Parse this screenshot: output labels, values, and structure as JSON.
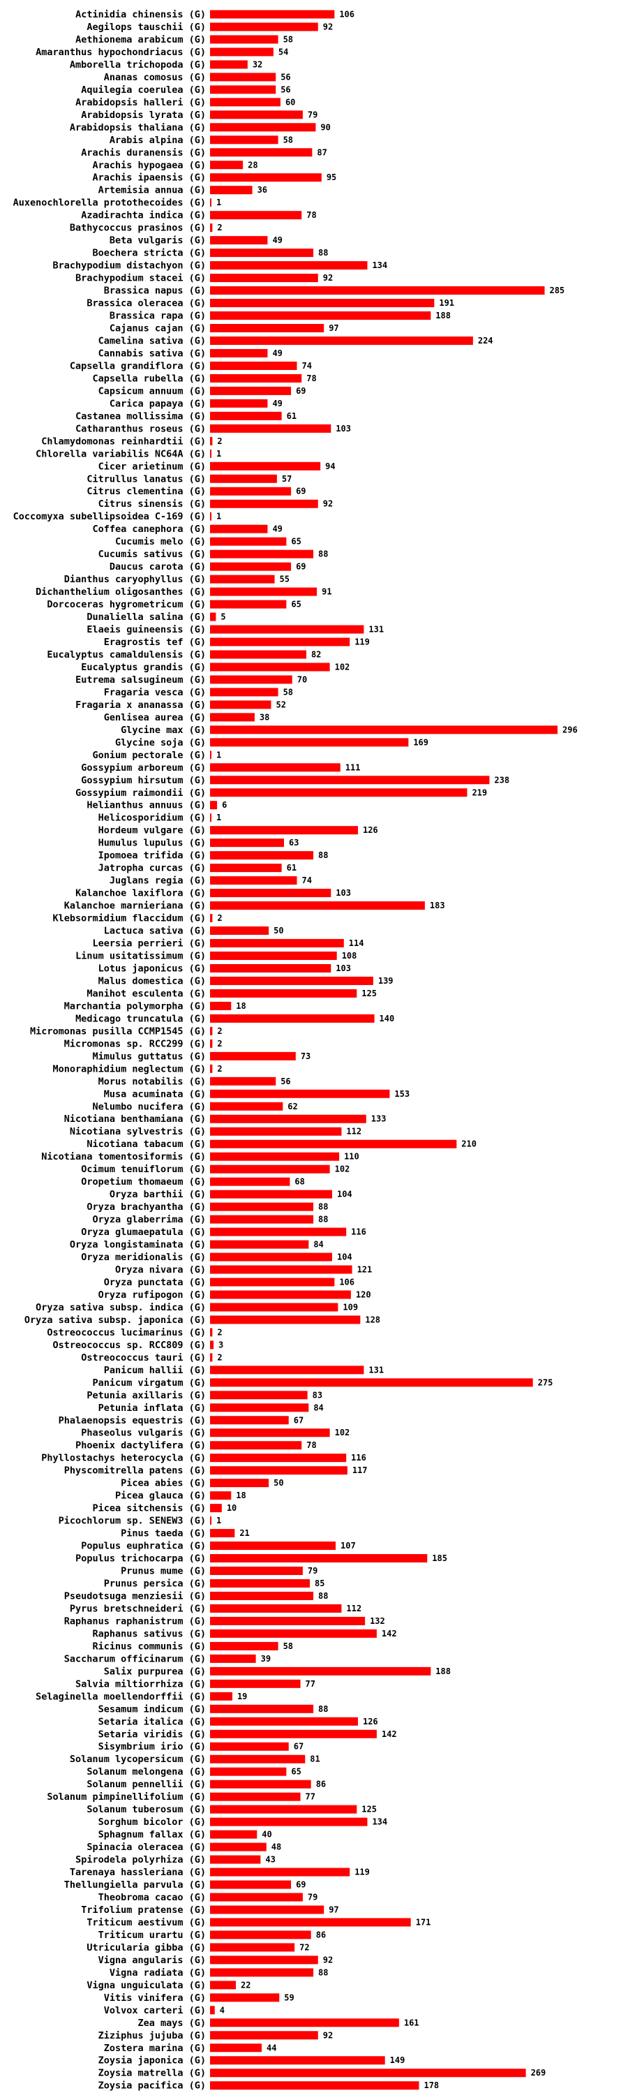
{
  "chart_data": {
    "type": "bar",
    "orientation": "horizontal",
    "title": "",
    "xlabel": "",
    "ylabel": "",
    "bar_color": "#ff0000",
    "xlim": [
      0,
      296
    ],
    "categories": [
      "Actinidia chinensis (G)",
      "Aegilops tauschii (G)",
      "Aethionema arabicum (G)",
      "Amaranthus hypochondriacus (G)",
      "Amborella trichopoda (G)",
      "Ananas comosus (G)",
      "Aquilegia coerulea (G)",
      "Arabidopsis halleri (G)",
      "Arabidopsis lyrata (G)",
      "Arabidopsis thaliana (G)",
      "Arabis alpina (G)",
      "Arachis duranensis (G)",
      "Arachis hypogaea (G)",
      "Arachis ipaensis (G)",
      "Artemisia annua (G)",
      "Auxenochlorella protothecoides (G)",
      "Azadirachta indica (G)",
      "Bathycoccus prasinos (G)",
      "Beta vulgaris (G)",
      "Boechera stricta (G)",
      "Brachypodium distachyon (G)",
      "Brachypodium stacei (G)",
      "Brassica napus (G)",
      "Brassica oleracea (G)",
      "Brassica rapa (G)",
      "Cajanus cajan (G)",
      "Camelina sativa (G)",
      "Cannabis sativa (G)",
      "Capsella grandiflora (G)",
      "Capsella rubella (G)",
      "Capsicum annuum (G)",
      "Carica papaya (G)",
      "Castanea mollissima (G)",
      "Catharanthus roseus (G)",
      "Chlamydomonas reinhardtii (G)",
      "Chlorella variabilis NC64A (G)",
      "Cicer arietinum (G)",
      "Citrullus lanatus (G)",
      "Citrus clementina (G)",
      "Citrus sinensis (G)",
      "Coccomyxa subellipsoidea C-169 (G)",
      "Coffea canephora (G)",
      "Cucumis melo (G)",
      "Cucumis sativus (G)",
      "Daucus carota (G)",
      "Dianthus caryophyllus (G)",
      "Dichanthelium oligosanthes (G)",
      "Dorcoceras hygrometricum (G)",
      "Dunaliella salina (G)",
      "Elaeis guineensis (G)",
      "Eragrostis tef (G)",
      "Eucalyptus camaldulensis (G)",
      "Eucalyptus grandis (G)",
      "Eutrema salsugineum (G)",
      "Fragaria vesca (G)",
      "Fragaria x ananassa (G)",
      "Genlisea aurea (G)",
      "Glycine max (G)",
      "Glycine soja (G)",
      "Gonium pectorale (G)",
      "Gossypium arboreum (G)",
      "Gossypium hirsutum (G)",
      "Gossypium raimondii (G)",
      "Helianthus annuus (G)",
      "Helicosporidium (G)",
      "Hordeum vulgare (G)",
      "Humulus lupulus (G)",
      "Ipomoea trifida (G)",
      "Jatropha curcas (G)",
      "Juglans regia (G)",
      "Kalanchoe laxiflora (G)",
      "Kalanchoe marnieriana (G)",
      "Klebsormidium flaccidum (G)",
      "Lactuca sativa (G)",
      "Leersia perrieri (G)",
      "Linum usitatissimum (G)",
      "Lotus japonicus (G)",
      "Malus domestica (G)",
      "Manihot esculenta (G)",
      "Marchantia polymorpha (G)",
      "Medicago truncatula (G)",
      "Micromonas pusilla CCMP1545 (G)",
      "Micromonas sp. RCC299 (G)",
      "Mimulus guttatus (G)",
      "Monoraphidium neglectum (G)",
      "Morus notabilis (G)",
      "Musa acuminata (G)",
      "Nelumbo nucifera (G)",
      "Nicotiana benthamiana (G)",
      "Nicotiana sylvestris (G)",
      "Nicotiana tabacum (G)",
      "Nicotiana tomentosiformis (G)",
      "Ocimum tenuiflorum (G)",
      "Oropetium thomaeum (G)",
      "Oryza barthii (G)",
      "Oryza brachyantha (G)",
      "Oryza glaberrima (G)",
      "Oryza glumaepatula (G)",
      "Oryza longistaminata (G)",
      "Oryza meridionalis (G)",
      "Oryza nivara (G)",
      "Oryza punctata (G)",
      "Oryza rufipogon (G)",
      "Oryza sativa subsp. indica (G)",
      "Oryza sativa subsp. japonica (G)",
      "Ostreococcus lucimarinus (G)",
      "Ostreococcus sp. RCC809 (G)",
      "Ostreococcus tauri (G)",
      "Panicum hallii (G)",
      "Panicum virgatum (G)",
      "Petunia axillaris (G)",
      "Petunia inflata (G)",
      "Phalaenopsis equestris (G)",
      "Phaseolus vulgaris (G)",
      "Phoenix dactylifera (G)",
      "Phyllostachys heterocycla (G)",
      "Physcomitrella patens (G)",
      "Picea abies (G)",
      "Picea glauca (G)",
      "Picea sitchensis (G)",
      "Picochlorum sp. SENEW3 (G)",
      "Pinus taeda (G)",
      "Populus euphratica (G)",
      "Populus trichocarpa (G)",
      "Prunus mume (G)",
      "Prunus persica (G)",
      "Pseudotsuga menziesii (G)",
      "Pyrus bretschneideri (G)",
      "Raphanus raphanistrum (G)",
      "Raphanus sativus (G)",
      "Ricinus communis (G)",
      "Saccharum officinarum (G)",
      "Salix purpurea (G)",
      "Salvia miltiorrhiza (G)",
      "Selaginella moellendorffii (G)",
      "Sesamum indicum (G)",
      "Setaria italica (G)",
      "Setaria viridis (G)",
      "Sisymbrium irio (G)",
      "Solanum lycopersicum (G)",
      "Solanum melongena (G)",
      "Solanum pennellii (G)",
      "Solanum pimpinellifolium (G)",
      "Solanum tuberosum (G)",
      "Sorghum bicolor (G)",
      "Sphagnum fallax (G)",
      "Spinacia oleracea (G)",
      "Spirodela polyrhiza (G)",
      "Tarenaya hassleriana (G)",
      "Thellungiella parvula (G)",
      "Theobroma cacao (G)",
      "Trifolium pratense (G)",
      "Triticum aestivum (G)",
      "Triticum urartu (G)",
      "Utricularia gibba (G)",
      "Vigna angularis (G)",
      "Vigna radiata (G)",
      "Vigna unguiculata (G)",
      "Vitis vinifera (G)",
      "Volvox carteri (G)",
      "Zea mays (G)",
      "Ziziphus jujuba (G)",
      "Zostera marina (G)",
      "Zoysia japonica (G)",
      "Zoysia matrella (G)",
      "Zoysia pacifica (G)"
    ],
    "values": [
      106,
      92,
      58,
      54,
      32,
      56,
      56,
      60,
      79,
      90,
      58,
      87,
      28,
      95,
      36,
      1,
      78,
      2,
      49,
      88,
      134,
      92,
      285,
      191,
      188,
      97,
      224,
      49,
      74,
      78,
      69,
      49,
      61,
      103,
      2,
      1,
      94,
      57,
      69,
      92,
      1,
      49,
      65,
      88,
      69,
      55,
      91,
      65,
      5,
      131,
      119,
      82,
      102,
      70,
      58,
      52,
      38,
      296,
      169,
      1,
      111,
      238,
      219,
      6,
      1,
      126,
      63,
      88,
      61,
      74,
      103,
      183,
      2,
      50,
      114,
      108,
      103,
      139,
      125,
      18,
      140,
      2,
      2,
      73,
      2,
      56,
      153,
      62,
      133,
      112,
      210,
      110,
      102,
      68,
      104,
      88,
      88,
      116,
      84,
      104,
      121,
      106,
      120,
      109,
      128,
      2,
      3,
      2,
      131,
      275,
      83,
      84,
      67,
      102,
      78,
      116,
      117,
      50,
      18,
      10,
      1,
      21,
      107,
      185,
      79,
      85,
      88,
      112,
      132,
      142,
      58,
      39,
      188,
      77,
      19,
      88,
      126,
      142,
      67,
      81,
      65,
      86,
      77,
      125,
      134,
      40,
      48,
      43,
      119,
      69,
      79,
      97,
      171,
      86,
      72,
      92,
      88,
      22,
      59,
      4,
      161,
      92,
      44,
      149,
      269,
      178
    ]
  }
}
